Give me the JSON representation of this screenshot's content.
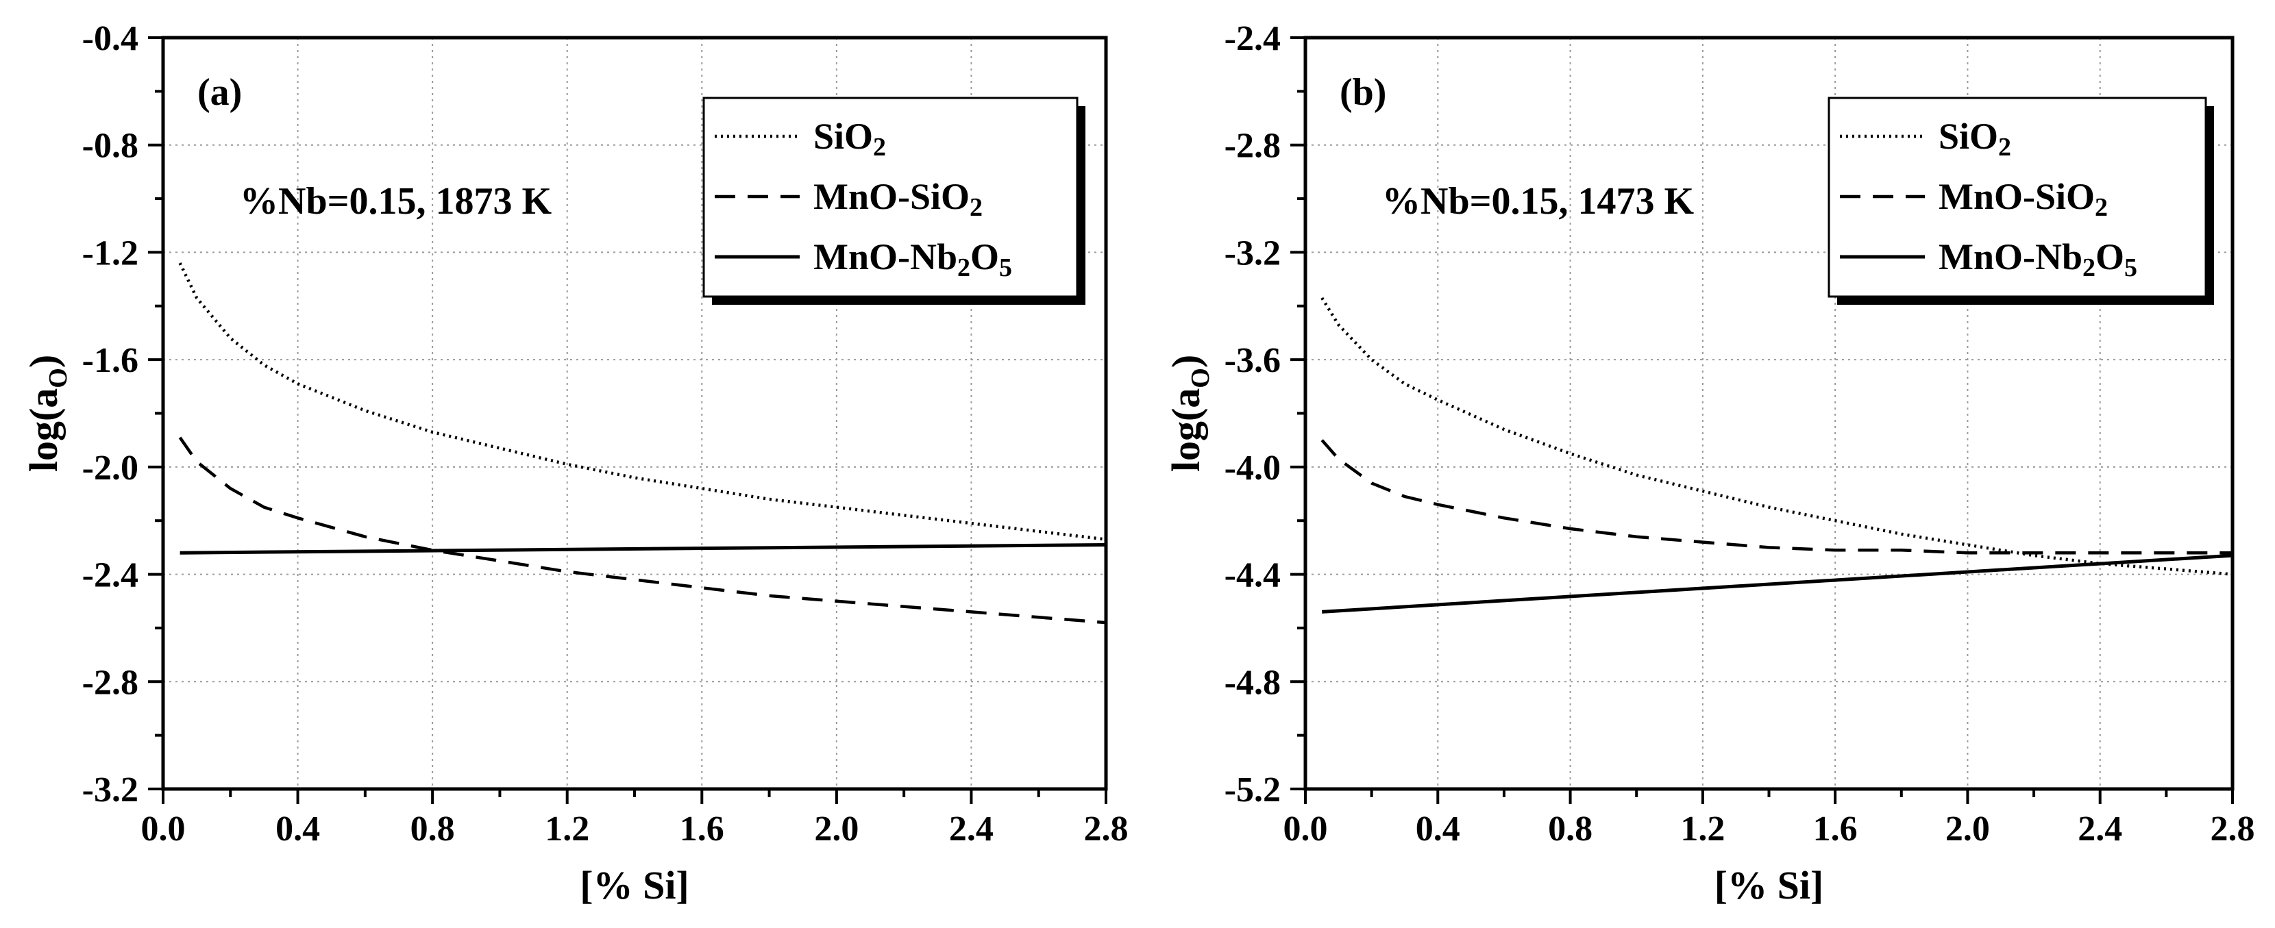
{
  "chart_data": [
    {
      "type": "line",
      "panel_label": "(a)",
      "annotation": "%Nb=0.15, 1873 K",
      "xlabel": "[% Si]",
      "ylabel": "log(a",
      "ylabel_sub": "O",
      "ylabel_close": ")",
      "xlim": [
        0.0,
        2.8
      ],
      "ylim": [
        -3.2,
        -0.4
      ],
      "xticks": [
        0.0,
        0.4,
        0.8,
        1.2,
        1.6,
        2.0,
        2.4,
        2.8
      ],
      "xtick_labels": [
        "0.0",
        "0.4",
        "0.8",
        "1.2",
        "1.6",
        "2.0",
        "2.4",
        "2.8"
      ],
      "yticks": [
        -3.2,
        -2.8,
        -2.4,
        -2.0,
        -1.6,
        -1.2,
        -0.8,
        -0.4
      ],
      "ytick_labels": [
        "-3.2",
        "-2.8",
        "-2.4",
        "-2.0",
        "-1.6",
        "-1.2",
        "-0.8",
        "-0.4"
      ],
      "grid": true,
      "legend_position": "top-right",
      "series": [
        {
          "name": "SiO2",
          "name_main": "SiO",
          "name_sub": "2",
          "name_tail": "",
          "style": "dotted",
          "x": [
            0.05,
            0.1,
            0.2,
            0.3,
            0.4,
            0.6,
            0.8,
            1.0,
            1.2,
            1.4,
            1.6,
            1.8,
            2.0,
            2.2,
            2.4,
            2.6,
            2.8
          ],
          "y": [
            -1.24,
            -1.37,
            -1.52,
            -1.62,
            -1.69,
            -1.79,
            -1.87,
            -1.93,
            -1.99,
            -2.04,
            -2.08,
            -2.12,
            -2.15,
            -2.18,
            -2.21,
            -2.24,
            -2.27
          ]
        },
        {
          "name": "MnO-SiO2",
          "name_main": "MnO-SiO",
          "name_sub": "2",
          "name_tail": "",
          "style": "dashed",
          "x": [
            0.05,
            0.1,
            0.2,
            0.3,
            0.4,
            0.6,
            0.8,
            1.0,
            1.2,
            1.4,
            1.6,
            1.8,
            2.0,
            2.2,
            2.4,
            2.6,
            2.8
          ],
          "y": [
            -1.89,
            -1.98,
            -2.08,
            -2.15,
            -2.19,
            -2.26,
            -2.31,
            -2.35,
            -2.39,
            -2.42,
            -2.45,
            -2.48,
            -2.5,
            -2.52,
            -2.54,
            -2.56,
            -2.58
          ]
        },
        {
          "name": "MnO-Nb2O5",
          "name_main": "MnO-Nb",
          "name_sub": "2",
          "name_tail": "O",
          "name_sub2": "5",
          "style": "solid",
          "x": [
            0.05,
            2.8
          ],
          "y": [
            -2.32,
            -2.29
          ]
        }
      ]
    },
    {
      "type": "line",
      "panel_label": "(b)",
      "annotation": "%Nb=0.15, 1473 K",
      "xlabel": "[% Si]",
      "ylabel": "log(a",
      "ylabel_sub": "O",
      "ylabel_close": ")",
      "xlim": [
        0.0,
        2.8
      ],
      "ylim": [
        -5.2,
        -2.4
      ],
      "xticks": [
        0.0,
        0.4,
        0.8,
        1.2,
        1.6,
        2.0,
        2.4,
        2.8
      ],
      "xtick_labels": [
        "0.0",
        "0.4",
        "0.8",
        "1.2",
        "1.6",
        "2.0",
        "2.4",
        "2.8"
      ],
      "yticks": [
        -5.2,
        -4.8,
        -4.4,
        -4.0,
        -3.6,
        -3.2,
        -2.8,
        -2.4
      ],
      "ytick_labels": [
        "-5.2",
        "-4.8",
        "-4.4",
        "-4.0",
        "-3.6",
        "-3.2",
        "-2.8",
        "-2.4"
      ],
      "grid": true,
      "legend_position": "top-right",
      "series": [
        {
          "name": "SiO2",
          "name_main": "SiO",
          "name_sub": "2",
          "name_tail": "",
          "style": "dotted",
          "x": [
            0.05,
            0.1,
            0.2,
            0.3,
            0.4,
            0.6,
            0.8,
            1.0,
            1.2,
            1.4,
            1.6,
            1.8,
            2.0,
            2.2,
            2.4,
            2.6,
            2.8
          ],
          "y": [
            -3.37,
            -3.47,
            -3.6,
            -3.69,
            -3.75,
            -3.86,
            -3.95,
            -4.03,
            -4.09,
            -4.15,
            -4.2,
            -4.25,
            -4.29,
            -4.33,
            -4.36,
            -4.38,
            -4.4
          ]
        },
        {
          "name": "MnO-SiO2",
          "name_main": "MnO-SiO",
          "name_sub": "2",
          "name_tail": "",
          "style": "dashed",
          "x": [
            0.05,
            0.1,
            0.2,
            0.3,
            0.4,
            0.6,
            0.8,
            1.0,
            1.2,
            1.4,
            1.6,
            1.8,
            2.0,
            2.2,
            2.4,
            2.6,
            2.8
          ],
          "y": [
            -3.9,
            -3.97,
            -4.06,
            -4.11,
            -4.14,
            -4.19,
            -4.23,
            -4.26,
            -4.28,
            -4.3,
            -4.31,
            -4.31,
            -4.32,
            -4.32,
            -4.32,
            -4.32,
            -4.32
          ]
        },
        {
          "name": "MnO-Nb2O5",
          "name_main": "MnO-Nb",
          "name_sub": "2",
          "name_tail": "O",
          "name_sub2": "5",
          "style": "solid",
          "x": [
            0.05,
            2.8
          ],
          "y": [
            -4.54,
            -4.33
          ]
        }
      ]
    }
  ]
}
